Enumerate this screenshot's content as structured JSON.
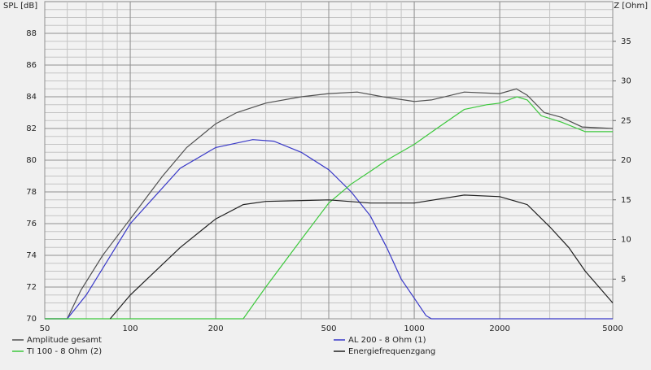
{
  "chart_data": {
    "type": "line",
    "ylabel": "SPL [dB]",
    "y2label": "Z [Ohm]",
    "xscale": "log",
    "xlim": [
      50,
      5000
    ],
    "xticks": [
      50,
      100,
      200,
      500,
      1000,
      2000,
      5000
    ],
    "ylim": [
      70,
      90
    ],
    "yticks": [
      70,
      72,
      74,
      76,
      78,
      80,
      82,
      84,
      86,
      88
    ],
    "y2lim": [
      0,
      40
    ],
    "y2ticks": [
      5,
      10,
      15,
      20,
      25,
      30,
      35
    ],
    "grid": true,
    "series": [
      {
        "name": "Amplitude gesamt",
        "color": "#505050",
        "x": [
          50,
          60,
          67,
          80,
          100,
          130,
          158,
          200,
          237,
          300,
          400,
          500,
          630,
          775,
          1000,
          1150,
          1500,
          2000,
          2290,
          2500,
          2870,
          3300,
          3900,
          5000
        ],
        "values": [
          70,
          70,
          71.8,
          74,
          76.3,
          79,
          80.8,
          82.3,
          83,
          83.6,
          84,
          84.2,
          84.3,
          84,
          83.7,
          83.8,
          84.3,
          84.2,
          84.5,
          84.1,
          83,
          82.7,
          82.1,
          82
        ]
      },
      {
        "name": "AL 200 - 8 Ohm (1)",
        "color": "#3838c8",
        "x": [
          50,
          60,
          70,
          100,
          150,
          200,
          270,
          320,
          400,
          500,
          600,
          700,
          800,
          900,
          1000,
          1100,
          1150,
          5000
        ],
        "values": [
          70,
          70,
          71.5,
          76,
          79.5,
          80.8,
          81.3,
          81.2,
          80.5,
          79.4,
          78,
          76.5,
          74.5,
          72.5,
          71.3,
          70.2,
          70,
          70
        ]
      },
      {
        "name": "TI 100 - 8 Ohm (2)",
        "color": "#3cc83c",
        "x": [
          50,
          250,
          300,
          400,
          500,
          600,
          700,
          800,
          1000,
          1200,
          1500,
          1800,
          2000,
          2300,
          2500,
          2800,
          3300,
          4000,
          5000
        ],
        "values": [
          70,
          70,
          72,
          75,
          77.3,
          78.5,
          79.3,
          80,
          81,
          82,
          83.2,
          83.5,
          83.6,
          84,
          83.8,
          82.8,
          82.4,
          81.8,
          81.8
        ]
      },
      {
        "name": "Energiefrequenzgang",
        "color": "#202020",
        "x": [
          85,
          100,
          150,
          200,
          250,
          300,
          500,
          700,
          1000,
          1500,
          2000,
          2500,
          3000,
          3500,
          4000,
          5000
        ],
        "values": [
          70,
          71.5,
          74.5,
          76.3,
          77.2,
          77.4,
          77.5,
          77.3,
          77.3,
          77.8,
          77.7,
          77.2,
          75.8,
          74.5,
          73,
          71
        ]
      }
    ]
  }
}
